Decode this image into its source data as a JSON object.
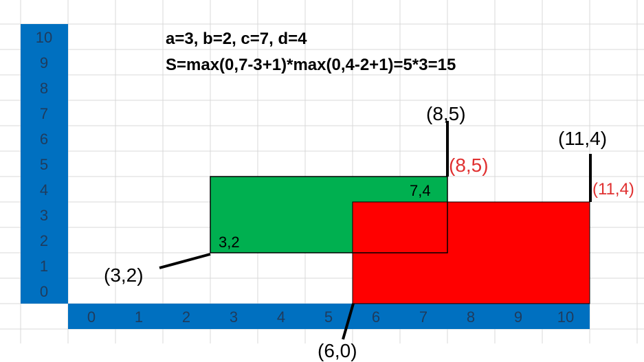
{
  "formula": {
    "line1": "a=3, b=2, c=7, d=4",
    "line2": "S=max(0,7-3+1)*max(0,4-2+1)=5*3=15"
  },
  "y_axis": {
    "labels": [
      "10",
      "9",
      "8",
      "7",
      "6",
      "5",
      "4",
      "3",
      "2",
      "1",
      "0"
    ],
    "fill": "#0070C0"
  },
  "x_axis": {
    "labels": [
      "0",
      "1",
      "2",
      "3",
      "4",
      "5",
      "6",
      "7",
      "8",
      "9",
      "10"
    ],
    "fill": "#0070C0"
  },
  "rectangles": [
    {
      "name": "green-rectangle",
      "fill": "#00B050",
      "inner_labels": [
        "3,2",
        "7,4"
      ]
    },
    {
      "name": "red-rectangle",
      "fill": "#FF0000"
    }
  ],
  "callouts": {
    "green_bottom_left": "(3,2)",
    "green_top_right_black": "(8,5)",
    "green_top_right_red": "(8,5)",
    "red_top_right_black": "(11,4)",
    "red_top_right_red": "(11,4)",
    "red_bottom_left": "(6,0)"
  },
  "colors": {
    "grid": "#D9D9D9",
    "axis_text": "#1F3B5C",
    "red_text": "#E03030",
    "black": "#000000"
  }
}
